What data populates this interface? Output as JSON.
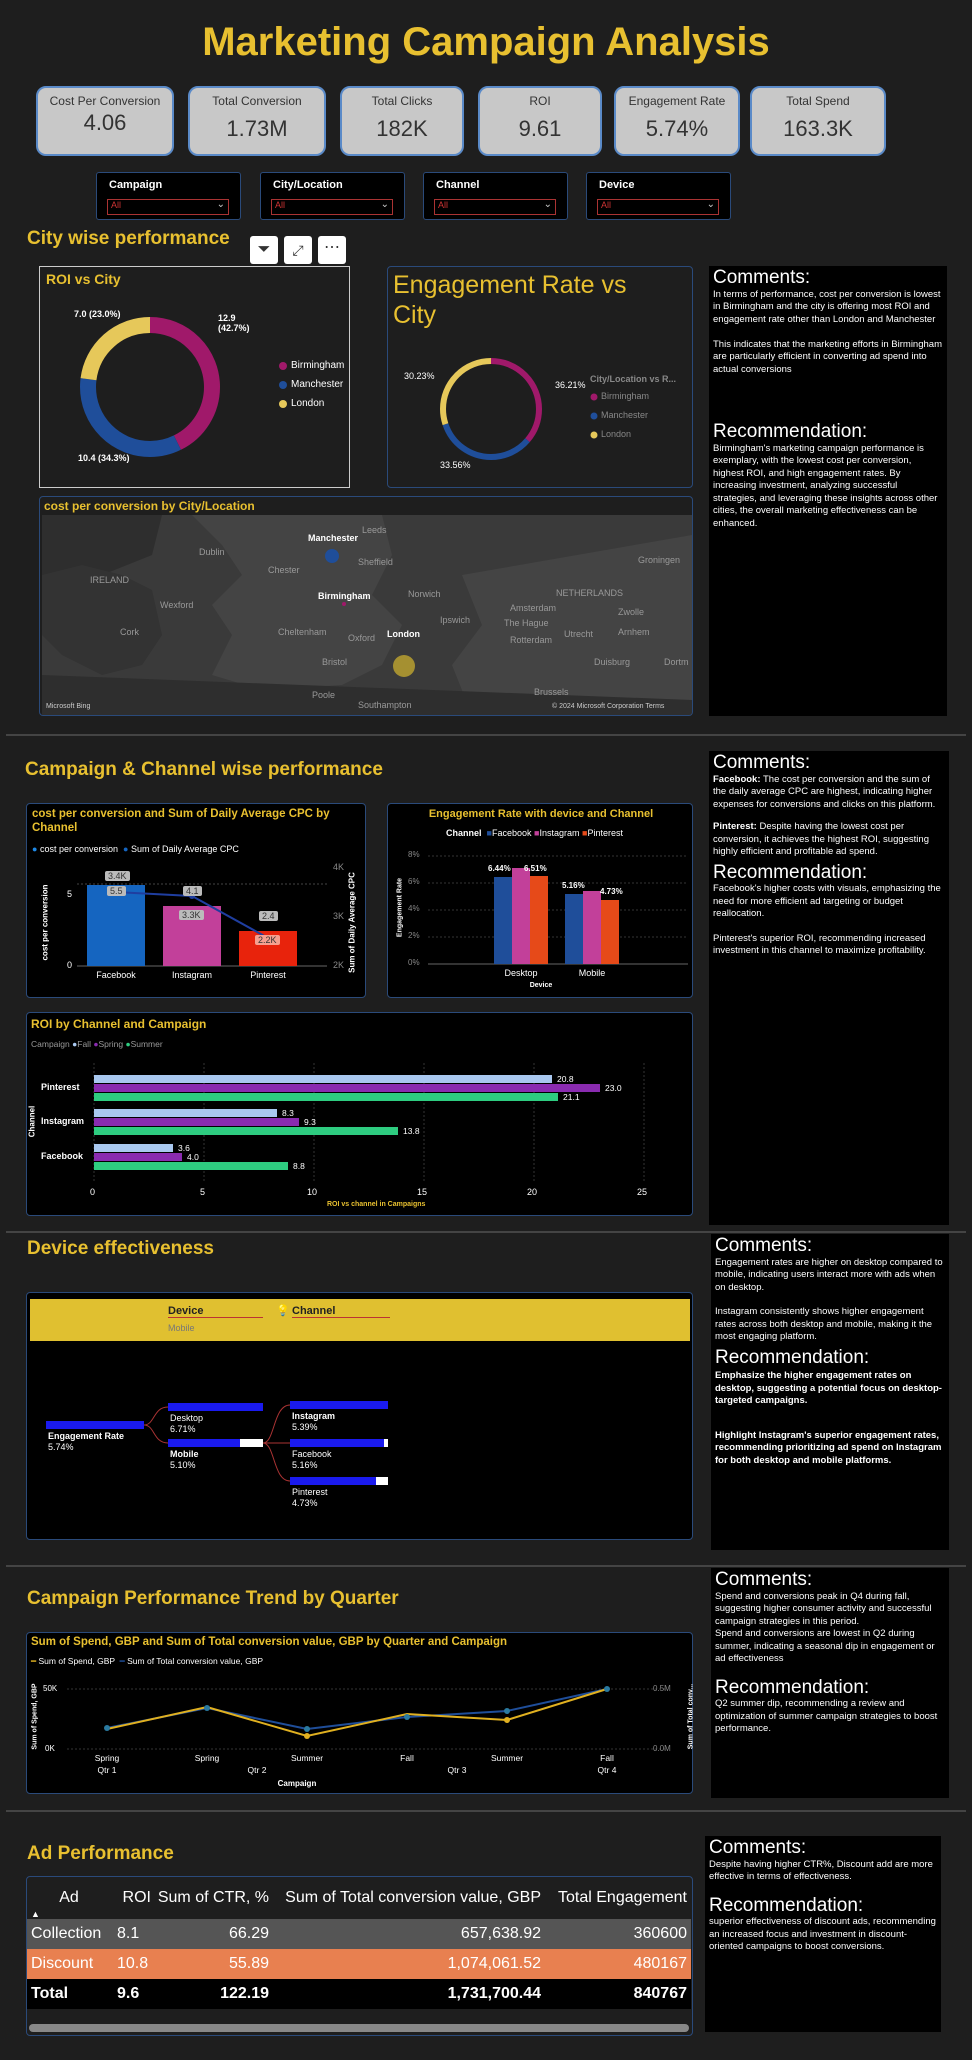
{
  "title": "Marketing Campaign Analysis",
  "kpis": [
    {
      "label": "Cost Per Conversion",
      "value": "4.06"
    },
    {
      "label": "Total Conversion",
      "value": "1.73M"
    },
    {
      "label": "Total Clicks",
      "value": "182K"
    },
    {
      "label": "ROI",
      "value": "9.61"
    },
    {
      "label": "Engagement Rate",
      "value": "5.74%"
    },
    {
      "label": "Total Spend",
      "value": "163.3K"
    }
  ],
  "slicers": [
    {
      "label": "Campaign",
      "value": "All"
    },
    {
      "label": "City/Location",
      "value": "All"
    },
    {
      "label": "Channel",
      "value": "All"
    },
    {
      "label": "Device",
      "value": "All"
    }
  ],
  "city": {
    "title": "City wise performance",
    "roi_chart": {
      "title": "ROI vs City",
      "legend": [
        "Birmingham",
        "Manchester",
        "London"
      ],
      "labels": [
        "12.9 (42.7%)",
        "10.4 (34.3%)",
        "7.0 (23.0%)"
      ]
    },
    "eng_chart": {
      "title": "Engagement Rate vs City",
      "legend_title": "City/Location vs R...",
      "legend": [
        "Birmingham",
        "Manchester",
        "London"
      ],
      "labels": [
        "36.21%",
        "33.56%",
        "30.23%"
      ]
    },
    "map": {
      "title": "cost per conversion by City/Location",
      "place_labels": [
        "Manchester",
        "Leeds",
        "Dublin",
        "Sheffield",
        "Chester",
        "IRELAND",
        "Birmingham",
        "Norwich",
        "Wexford",
        "Cork",
        "Cheltenham",
        "Oxford",
        "London",
        "Bristol",
        "Poole",
        "Southampton",
        "Amsterdam",
        "The Hague",
        "NETHERLANDS",
        "Rotterdam",
        "Utrecht",
        "Arnhem",
        "Zwolle",
        "Groningen",
        "Duisburg",
        "Dortm",
        "Brussels",
        "Ipswich"
      ],
      "brand": "Microsoft Bing",
      "copyright": "© 2024 Microsoft Corporation  Terms"
    },
    "comments_title": "Comments:",
    "comments": "In terms of performance, cost per conversion is lowest in Birmingham and the city is offering most ROI  and engagement rate other than London and Manchester\n\nThis indicates that the marketing efforts in Birmingham are particularly efficient in converting ad spend into actual conversions",
    "rec_title": "Recommendation:",
    "rec": "Birmingham's marketing campaign performance is exemplary, with the lowest cost per conversion, highest ROI, and high engagement rates. By increasing investment, analyzing successful strategies, and leveraging these insights across other cities, the overall marketing effectiveness can be enhanced."
  },
  "campaign": {
    "title": "Campaign & Channel wise performance",
    "cpc_chart": {
      "title": "cost per conversion and Sum of Daily Average CPC by Channel",
      "legend": [
        "cost per conversion",
        "Sum of Daily Average CPC"
      ],
      "ylabel": "cost per conversion",
      "y2label": "Sum of Daily Average CPC",
      "yticks": [
        "5",
        "0"
      ],
      "y2ticks": [
        "4K",
        "3K",
        "2K"
      ],
      "categories": [
        "Facebook",
        "Instagram",
        "Pinterest"
      ],
      "cpc_labels": [
        "5.5",
        "4.1",
        "2.4"
      ],
      "avg_labels": [
        "3.4K",
        "3.3K",
        "2.2K"
      ]
    },
    "eng_chart": {
      "title": "Engagement Rate with device and Channel",
      "legend_title": "Channel",
      "legend": [
        "Facebook",
        "Instagram",
        "Pinterest"
      ],
      "yticks": [
        "8%",
        "6%",
        "4%",
        "2%",
        "0%"
      ],
      "ylabel": "Engagement Rate",
      "xlabel": "Device",
      "categories": [
        "Desktop",
        "Mobile"
      ],
      "labels": [
        "6.44%",
        "6.51%",
        "5.16%",
        "4.73%"
      ]
    },
    "roi_chart": {
      "title": "ROI by Channel and Campaign",
      "legend_title": "Campaign",
      "legend": [
        "Fall",
        "Spring",
        "Summer"
      ],
      "ylabel": "Channel",
      "xlabel": "ROI vs channel in Campaigns",
      "categories": [
        "Pinterest",
        "Instagram",
        "Facebook"
      ],
      "xticks": [
        "0",
        "5",
        "10",
        "15",
        "20",
        "25"
      ],
      "labels": [
        "20.8",
        "23.0",
        "21.1",
        "8.3",
        "9.3",
        "13.8",
        "3.6",
        "4.0",
        "8.8"
      ]
    },
    "comments_title": "Comments:",
    "c1_bold": "Facebook:",
    "c1": " The cost per conversion and the sum of the daily average CPC are highest, indicating higher expenses for conversions and clicks on this platform.",
    "c2_bold": "Pinterest:",
    "c2": " Despite having the lowest cost per conversion, it achieves the highest ROI, suggesting highly efficient and profitable ad spend.",
    "rec_title": "Recommendation:",
    "rec1": "Facebook's higher costs with visuals, emphasizing the need for more efficient ad targeting or budget reallocation.",
    "rec2": " Pinterest's superior ROI, recommending increased investment in this channel to maximize profitability."
  },
  "device": {
    "title": "Device effectiveness",
    "header_labels": [
      "Device",
      "Channel"
    ],
    "header_sub": "Mobile",
    "root": {
      "label": "Engagement Rate",
      "value": "5.74%"
    },
    "level1": [
      {
        "label": "Desktop",
        "value": "6.71%"
      },
      {
        "label": "Mobile",
        "value": "5.10%"
      }
    ],
    "level2": [
      {
        "label": "Instagram",
        "value": "5.39%"
      },
      {
        "label": "Facebook",
        "value": "5.16%"
      },
      {
        "label": "Pinterest",
        "value": "4.73%"
      }
    ],
    "comments_title": "Comments:",
    "comments1": "Engagement rates are higher on desktop compared to mobile, indicating users interact more with ads when on desktop.",
    "comments2": "Instagram consistently shows higher engagement rates across both desktop and mobile, making it the most engaging platform.",
    "rec_title": "Recommendation:",
    "rec1": "Emphasize the higher engagement rates on desktop, suggesting a potential focus on desktop-targeted campaigns.",
    "rec2": "Highlight Instagram's superior engagement rates, recommending prioritizing ad spend on Instagram for both desktop and mobile platforms."
  },
  "trend": {
    "title": "Campaign Performance Trend by Quarter",
    "chart_title": "Sum of Spend, GBP and Sum of Total conversion value, GBP by Quarter and Campaign",
    "legend": [
      "Sum of Spend, GBP",
      "Sum of Total conversion value, GBP"
    ],
    "ylabel": "Sum of Spend, GBP",
    "y2label": "Sum of Total conv...",
    "yticks": [
      "50K",
      "0K"
    ],
    "y2ticks": [
      "0.5M",
      "0.0M"
    ],
    "xlabel": "Campaign",
    "campaigns": [
      "Spring",
      "Spring",
      "Summer",
      "Fall",
      "Summer",
      "Fall"
    ],
    "quarters": [
      "Qtr 1",
      "Qtr 2",
      "Qtr 3",
      "Qtr 4"
    ],
    "comments_title": "Comments:",
    "comments1": "Spend and conversions peak in Q4 during fall, suggesting higher consumer activity and successful campaign strategies in this period.",
    "comments2": "Spend and conversions are lowest in Q2 during summer, indicating a seasonal dip in engagement or ad effectiveness",
    "rec_title": "Recommendation:",
    "rec": " Q2 summer dip, recommending a review and optimization of summer campaign strategies to boost performance."
  },
  "ad": {
    "title": "Ad Performance",
    "columns": [
      "Ad",
      "ROI",
      "Sum of CTR, %",
      "Sum of Total conversion value, GBP",
      "Total Engagement"
    ],
    "rows": [
      [
        "Collection",
        "8.1",
        "66.29",
        "657,638.92",
        "360600"
      ],
      [
        "Discount",
        "10.8",
        "55.89",
        "1,074,061.52",
        "480167"
      ]
    ],
    "total": [
      "Total",
      "9.6",
      "122.19",
      "1,731,700.44",
      "840767"
    ],
    "comments_title": "Comments:",
    "comments": "Despite having higher CTR%, Discount add are more effective in terms of effectiveness.",
    "rec_title": "Recommendation:",
    "rec": "superior effectiveness of discount ads, recommending an increased focus and investment in discount-oriented campaigns to boost conversions."
  },
  "colors": {
    "accent_yellow": "#e8c030",
    "birmingham": "#a0196a",
    "manchester": "#1f4e9a",
    "london": "#e6c85a",
    "facebook": "#1565c0",
    "instagram": "#c2409a",
    "pinterest": "#e64a19",
    "fall": "#a9c8f0",
    "spring": "#8a2bb0",
    "summer": "#2ecc80"
  },
  "chart_data": [
    {
      "type": "pie",
      "title": "ROI vs City",
      "categories": [
        "Birmingham",
        "Manchester",
        "London"
      ],
      "values": [
        12.9,
        10.4,
        7.0
      ]
    },
    {
      "type": "pie",
      "title": "Engagement Rate vs City",
      "categories": [
        "Birmingham",
        "Manchester",
        "London"
      ],
      "values": [
        36.21,
        33.56,
        30.23
      ]
    },
    {
      "type": "bar",
      "title": "cost per conversion and Sum of Daily Average CPC by Channel",
      "categories": [
        "Facebook",
        "Instagram",
        "Pinterest"
      ],
      "series": [
        {
          "name": "cost per conversion",
          "values": [
            5.5,
            4.1,
            2.4
          ]
        },
        {
          "name": "Sum of Daily Average CPC",
          "values": [
            3400,
            3300,
            2200
          ]
        }
      ]
    },
    {
      "type": "bar",
      "title": "Engagement Rate with device and Channel",
      "categories": [
        "Desktop",
        "Mobile"
      ],
      "series": [
        {
          "name": "Facebook",
          "values": [
            6.44,
            5.16
          ]
        },
        {
          "name": "Instagram",
          "values": [
            7.1,
            5.4
          ]
        },
        {
          "name": "Pinterest",
          "values": [
            6.51,
            4.73
          ]
        }
      ],
      "ylim": [
        0,
        8
      ]
    },
    {
      "type": "bar",
      "title": "ROI by Channel and Campaign",
      "categories": [
        "Pinterest",
        "Instagram",
        "Facebook"
      ],
      "series": [
        {
          "name": "Fall",
          "values": [
            20.8,
            8.3,
            3.6
          ]
        },
        {
          "name": "Spring",
          "values": [
            23.0,
            9.3,
            4.0
          ]
        },
        {
          "name": "Summer",
          "values": [
            21.1,
            13.8,
            8.8
          ]
        }
      ],
      "xlim": [
        0,
        25
      ]
    },
    {
      "type": "line",
      "title": "Sum of Spend, GBP and Sum of Total conversion value, GBP by Quarter and Campaign",
      "categories": [
        "Qtr1 Spring",
        "Qtr2 Spring",
        "Qtr2 Summer",
        "Qtr3 Fall",
        "Qtr3 Summer",
        "Qtr4 Fall"
      ],
      "series": [
        {
          "name": "Sum of Spend, GBP",
          "values": [
            18000,
            38000,
            10000,
            30000,
            26000,
            55000
          ]
        },
        {
          "name": "Sum of Total conversion value, GBP",
          "values": [
            190000,
            350000,
            190000,
            270000,
            330000,
            570000
          ]
        }
      ]
    }
  ]
}
